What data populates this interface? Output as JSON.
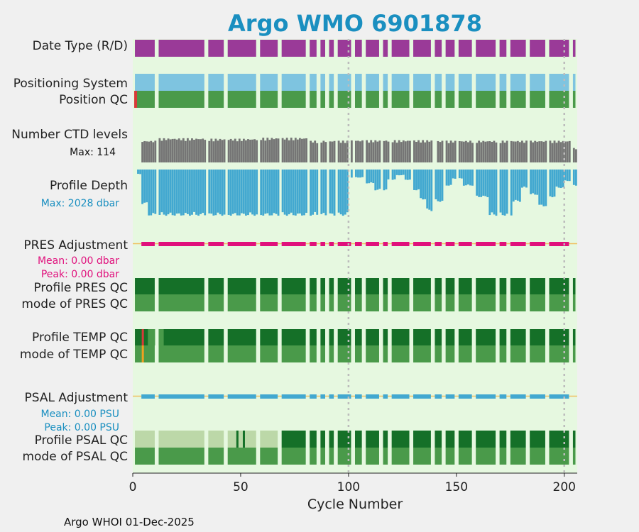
{
  "title": "Argo WMO 6901878",
  "footer": "Argo WHOI 01-Dec-2025",
  "colors": {
    "title": "#1a8fc0",
    "background": "#f0f0f0",
    "plot_bg": "#e6f8e0",
    "date_type": "#9a3a98",
    "positioning": "#7ec4e0",
    "qc_good": "#4a9a4a",
    "qc_dark": "#157028",
    "qc_light": "#bcd8a8",
    "qc_bad": "#d83a3a",
    "qc_probably_bad": "#f0a020",
    "ctd_levels": "#757575",
    "profile_depth": "#42a8d0",
    "pres_adj": "#e0107c",
    "psal_adj": "#42a8d0",
    "zero_line": "#f0c060",
    "grid": "#bcbcbc"
  },
  "rows": {
    "date_type": "Date Type (R/D)",
    "positioning_system": "Positioning System",
    "position_qc": "Position QC",
    "ctd_levels": "Number CTD levels",
    "ctd_max": "Max: 114",
    "profile_depth": "Profile Depth",
    "depth_max": "Max: 2028 dbar",
    "pres_adjustment": "PRES Adjustment",
    "pres_mean": "Mean: 0.00 dbar",
    "pres_peak": "Peak: 0.00 dbar",
    "profile_pres_qc": "Profile PRES QC",
    "mode_pres_qc": "mode of PRES QC",
    "profile_temp_qc": "Profile TEMP QC",
    "mode_temp_qc": "mode of TEMP QC",
    "psal_adjustment": "PSAL Adjustment",
    "psal_mean": "Mean: 0.00 PSU",
    "psal_peak": "Peak: 0.00 PSU",
    "profile_psal_qc": "Profile PSAL QC",
    "mode_psal_qc": "mode of PSAL QC"
  },
  "chart_data": {
    "type": "timeline",
    "xlabel": "Cycle Number",
    "xlim": [
      0,
      206
    ],
    "xticks": [
      0,
      50,
      100,
      150,
      200
    ],
    "xtick_labels": [
      "0",
      "50",
      "100",
      "150",
      "200"
    ],
    "vlines": [
      100,
      200
    ],
    "missing_cycles": [
      11,
      34,
      43,
      58,
      68,
      81,
      86,
      90,
      94,
      102,
      107,
      115,
      119,
      129,
      139,
      144,
      150,
      158,
      169,
      174,
      183,
      192,
      203
    ],
    "ctd_levels_max": 114,
    "ctd_levels_segments": [
      {
        "from": 1,
        "to": 4,
        "value": 0
      },
      {
        "from": 4,
        "to": 11,
        "value": 90
      },
      {
        "from": 12,
        "to": 34,
        "value": 100
      },
      {
        "from": 35,
        "to": 58,
        "value": 98
      },
      {
        "from": 59,
        "to": 81,
        "value": 102
      },
      {
        "from": 82,
        "to": 100,
        "value": 90
      },
      {
        "from": 101,
        "to": 140,
        "value": 92
      },
      {
        "from": 141,
        "to": 203,
        "value": 90
      },
      {
        "from": 204,
        "to": 206,
        "value": 60
      }
    ],
    "profile_depth_max_dbar": 2028,
    "profile_depth_segments": [
      {
        "from": 1,
        "to": 2,
        "depth": 0
      },
      {
        "from": 2,
        "to": 4,
        "depth": 200
      },
      {
        "from": 4,
        "to": 7,
        "depth": 1500
      },
      {
        "from": 7,
        "to": 100,
        "depth": 2000
      },
      {
        "from": 101,
        "to": 108,
        "depth": 350
      },
      {
        "from": 108,
        "to": 112,
        "depth": 600
      },
      {
        "from": 112,
        "to": 118,
        "depth": 900
      },
      {
        "from": 118,
        "to": 122,
        "depth": 450
      },
      {
        "from": 122,
        "to": 126,
        "depth": 250
      },
      {
        "from": 126,
        "to": 130,
        "depth": 450
      },
      {
        "from": 130,
        "to": 133,
        "depth": 900
      },
      {
        "from": 133,
        "to": 136,
        "depth": 1300
      },
      {
        "from": 136,
        "to": 140,
        "depth": 1800
      },
      {
        "from": 140,
        "to": 144,
        "depth": 1400
      },
      {
        "from": 144,
        "to": 148,
        "depth": 700
      },
      {
        "from": 148,
        "to": 153,
        "depth": 400
      },
      {
        "from": 153,
        "to": 158,
        "depth": 700
      },
      {
        "from": 158,
        "to": 165,
        "depth": 1200
      },
      {
        "from": 165,
        "to": 176,
        "depth": 2000
      },
      {
        "from": 176,
        "to": 180,
        "depth": 1400
      },
      {
        "from": 180,
        "to": 184,
        "depth": 800
      },
      {
        "from": 184,
        "to": 188,
        "depth": 1100
      },
      {
        "from": 188,
        "to": 192,
        "depth": 1600
      },
      {
        "from": 192,
        "to": 196,
        "depth": 1200
      },
      {
        "from": 196,
        "to": 200,
        "depth": 800
      },
      {
        "from": 200,
        "to": 203,
        "depth": 500
      },
      {
        "from": 204,
        "to": 206,
        "depth": 700
      }
    ],
    "pres_adjustment_mean_dbar": 0.0,
    "pres_adjustment_peak_dbar": 0.0,
    "psal_adjustment_mean_psu": 0.0,
    "psal_adjustment_peak_psu": 0.0,
    "position_qc_flags": [
      {
        "cycle": 1,
        "flag": "bad"
      }
    ],
    "temp_qc_flags": [
      {
        "cycle": 4,
        "flag": "bad"
      },
      {
        "cycle": 4,
        "flag": "probably_bad",
        "row": "mode"
      }
    ],
    "psal_profile_qc_light_until": 68
  }
}
